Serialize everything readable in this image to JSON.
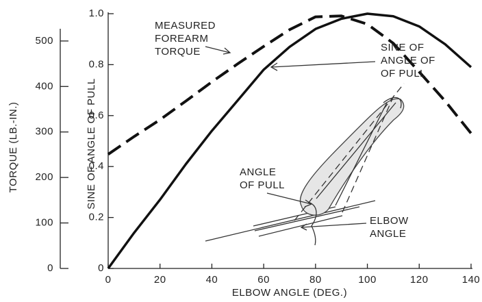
{
  "chart_data": {
    "type": "line",
    "xlabel": "ELBOW ANGLE (DEG.)",
    "ylabel": "SINE OF ANGLE OF PULL",
    "y2label": "TORQUE (LB.-IN.)",
    "x": [
      0,
      10,
      20,
      30,
      40,
      50,
      60,
      70,
      80,
      90,
      100,
      110,
      120,
      130,
      140
    ],
    "xlim": [
      0,
      140
    ],
    "xticks": [
      0,
      20,
      40,
      60,
      80,
      100,
      120,
      140
    ],
    "ylim": [
      0,
      1
    ],
    "yticks": [
      0,
      0.2,
      0.4,
      0.6,
      0.8,
      {
        "value": 1,
        "label": "1.0"
      }
    ],
    "y2lim": [
      0,
      560
    ],
    "y2ticks": [
      0,
      100,
      200,
      300,
      400,
      500
    ],
    "series": [
      {
        "color": "#111111",
        "style": "solid",
        "values": [
          0,
          0.14,
          0.27,
          0.41,
          0.54,
          0.66,
          0.78,
          0.87,
          0.94,
          0.98,
          1.0,
          0.99,
          0.95,
          0.88,
          0.79
        ]
      },
      {
        "color": "#111111",
        "style": "dashed",
        "axis": "y2",
        "values": [
          251,
          290,
          327,
          368,
          410,
          450,
          488,
          525,
          553,
          555,
          537,
          495,
          432,
          368,
          297
        ]
      }
    ],
    "annotations": [
      {
        "lines": [
          "MEASURED",
          "FOREARM",
          "TORQUE"
        ]
      },
      {
        "lines": [
          "SINE OF",
          "ANGLE OF",
          "OF PULL"
        ]
      },
      {
        "lines": [
          "ANGLE",
          "OF PULL"
        ]
      },
      {
        "lines": [
          "ELBOW",
          "ANGLE"
        ]
      }
    ]
  }
}
